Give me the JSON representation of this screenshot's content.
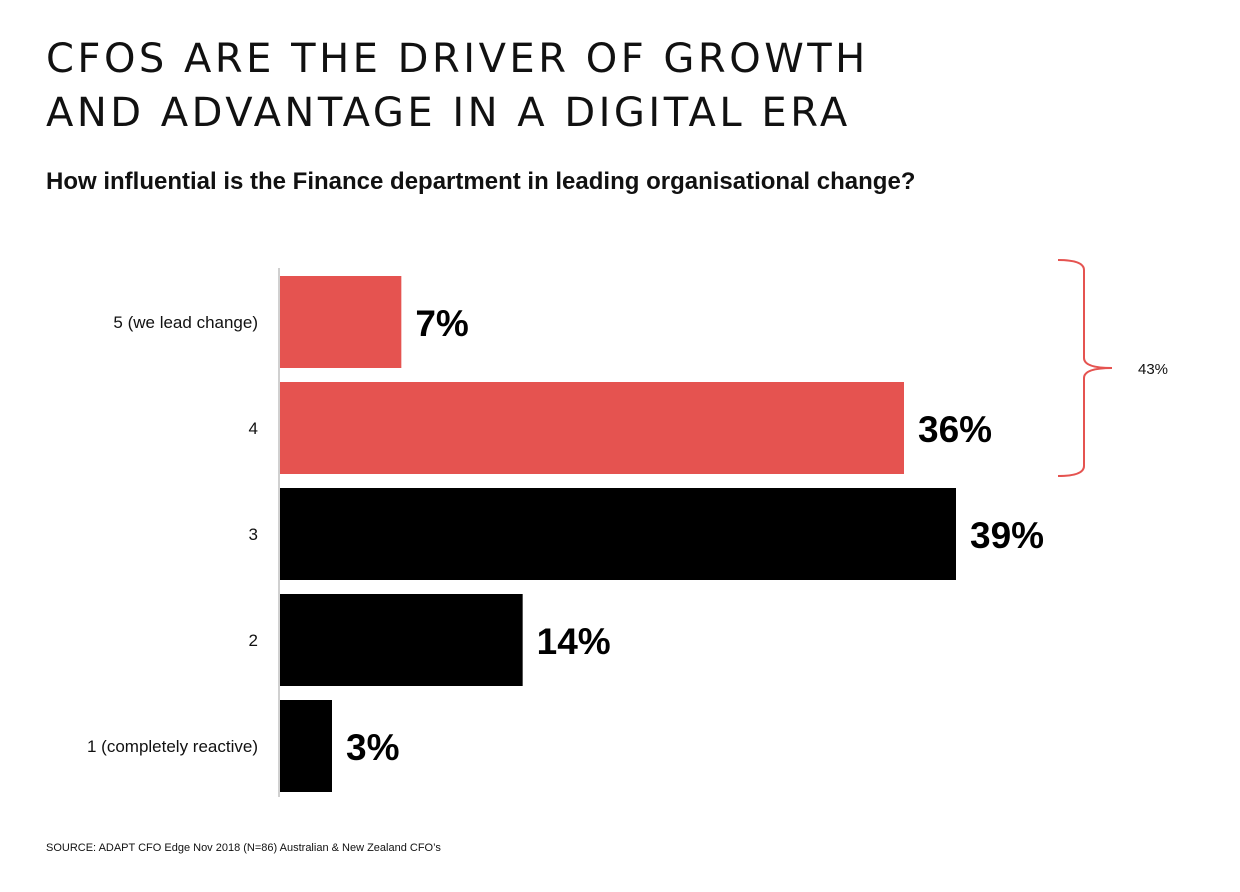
{
  "title_lines": [
    "CFOS ARE THE DRIVER OF GROWTH",
    "AND ADVANTAGE IN A DIGITAL ERA"
  ],
  "subtitle": "How influential is the Finance department in leading organisational change?",
  "source": "SOURCE: ADAPT CFO Edge Nov 2018 (N=86) Australian & New Zealand CFO’s",
  "colors": {
    "highlight": "#e55350",
    "base": "#000000",
    "axis": "#d0d0d0",
    "bracket": "#e55350"
  },
  "chart_data": {
    "type": "bar",
    "orientation": "horizontal",
    "categories": [
      "5 (we lead change)",
      "4",
      "3",
      "2",
      "1 (completely reactive)"
    ],
    "values": [
      7,
      36,
      39,
      14,
      3
    ],
    "value_labels": [
      "7%",
      "36%",
      "39%",
      "14%",
      "3%"
    ],
    "bar_colors": [
      "#e55350",
      "#e55350",
      "#000000",
      "#000000",
      "#000000"
    ],
    "xlim": [
      0,
      39
    ],
    "grid": false,
    "annotation": {
      "type": "bracket",
      "spans_categories": [
        "5 (we lead change)",
        "4"
      ],
      "label": "43%"
    }
  }
}
